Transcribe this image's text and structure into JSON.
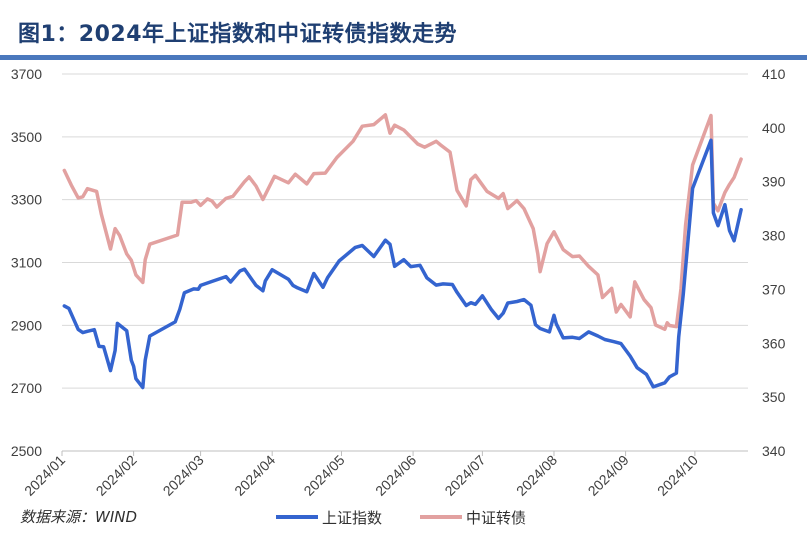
{
  "title": "图1：2024年上证指数和中证转债指数走势",
  "source_note": "数据来源：WIND",
  "colors": {
    "title": "#1f3f72",
    "rule": "#4a78bd",
    "sse": "#3464cf",
    "cb": "#e2a1a0",
    "grid": "#d9d9d9"
  },
  "chart_data": {
    "type": "line",
    "xlabel": "",
    "ylabel": "",
    "grid": true,
    "legend_position": "bottom",
    "x_tick_labels": [
      "2024/01",
      "2024/02",
      "2024/03",
      "2024/04",
      "2024/05",
      "2024/06",
      "2024/07",
      "2024/08",
      "2024/09",
      "2024/10"
    ],
    "y_left": {
      "min": 2500,
      "max": 3700,
      "ticks": [
        "2500",
        "2700",
        "2900",
        "3100",
        "3300",
        "3500",
        "3700"
      ]
    },
    "y_right": {
      "min": 340,
      "max": 410,
      "ticks": [
        "340",
        "350",
        "360",
        "370",
        "380",
        "390",
        "400",
        "410"
      ]
    },
    "series": [
      {
        "name": "上证指数",
        "axis": "left",
        "color": "#3464cf",
        "points": [
          [
            "2024-01-02",
            2962
          ],
          [
            "2024-01-04",
            2954
          ],
          [
            "2024-01-08",
            2887
          ],
          [
            "2024-01-10",
            2877
          ],
          [
            "2024-01-12",
            2881
          ],
          [
            "2024-01-15",
            2886
          ],
          [
            "2024-01-17",
            2833
          ],
          [
            "2024-01-19",
            2832
          ],
          [
            "2024-01-22",
            2756
          ],
          [
            "2024-01-24",
            2820
          ],
          [
            "2024-01-25",
            2906
          ],
          [
            "2024-01-29",
            2883
          ],
          [
            "2024-01-31",
            2789
          ],
          [
            "2024-02-01",
            2770
          ],
          [
            "2024-02-02",
            2730
          ],
          [
            "2024-02-05",
            2702
          ],
          [
            "2024-02-06",
            2789
          ],
          [
            "2024-02-08",
            2866
          ],
          [
            "2024-02-19",
            2911
          ],
          [
            "2024-02-21",
            2951
          ],
          [
            "2024-02-23",
            3004
          ],
          [
            "2024-02-27",
            3016
          ],
          [
            "2024-02-29",
            3015
          ],
          [
            "2024-03-01",
            3027
          ],
          [
            "2024-03-06",
            3040
          ],
          [
            "2024-03-12",
            3055
          ],
          [
            "2024-03-14",
            3038
          ],
          [
            "2024-03-18",
            3073
          ],
          [
            "2024-03-20",
            3079
          ],
          [
            "2024-03-25",
            3027
          ],
          [
            "2024-03-28",
            3010
          ],
          [
            "2024-03-29",
            3041
          ],
          [
            "2024-04-01",
            3077
          ],
          [
            "2024-04-08",
            3047
          ],
          [
            "2024-04-10",
            3027
          ],
          [
            "2024-04-12",
            3019
          ],
          [
            "2024-04-16",
            3007
          ],
          [
            "2024-04-19",
            3065
          ],
          [
            "2024-04-23",
            3021
          ],
          [
            "2024-04-25",
            3052
          ],
          [
            "2024-04-30",
            3105
          ],
          [
            "2024-05-07",
            3148
          ],
          [
            "2024-05-10",
            3154
          ],
          [
            "2024-05-15",
            3119
          ],
          [
            "2024-05-20",
            3171
          ],
          [
            "2024-05-22",
            3158
          ],
          [
            "2024-05-24",
            3088
          ],
          [
            "2024-05-28",
            3109
          ],
          [
            "2024-05-31",
            3087
          ],
          [
            "2024-06-04",
            3091
          ],
          [
            "2024-06-07",
            3051
          ],
          [
            "2024-06-11",
            3028
          ],
          [
            "2024-06-14",
            3032
          ],
          [
            "2024-06-18",
            3030
          ],
          [
            "2024-06-20",
            3005
          ],
          [
            "2024-06-24",
            2963
          ],
          [
            "2024-06-26",
            2972
          ],
          [
            "2024-06-28",
            2967
          ],
          [
            "2024-07-01",
            2994
          ],
          [
            "2024-07-05",
            2949
          ],
          [
            "2024-07-08",
            2922
          ],
          [
            "2024-07-10",
            2939
          ],
          [
            "2024-07-12",
            2971
          ],
          [
            "2024-07-16",
            2976
          ],
          [
            "2024-07-19",
            2982
          ],
          [
            "2024-07-22",
            2964
          ],
          [
            "2024-07-24",
            2902
          ],
          [
            "2024-07-26",
            2890
          ],
          [
            "2024-07-30",
            2879
          ],
          [
            "2024-08-01",
            2932
          ],
          [
            "2024-08-02",
            2905
          ],
          [
            "2024-08-05",
            2860
          ],
          [
            "2024-08-09",
            2862
          ],
          [
            "2024-08-12",
            2858
          ],
          [
            "2024-08-16",
            2879
          ],
          [
            "2024-08-20",
            2866
          ],
          [
            "2024-08-23",
            2855
          ],
          [
            "2024-08-27",
            2848
          ],
          [
            "2024-08-30",
            2842
          ],
          [
            "2024-09-03",
            2802
          ],
          [
            "2024-09-06",
            2765
          ],
          [
            "2024-09-10",
            2744
          ],
          [
            "2024-09-13",
            2704
          ],
          [
            "2024-09-18",
            2717
          ],
          [
            "2024-09-20",
            2736
          ],
          [
            "2024-09-23",
            2748
          ],
          [
            "2024-09-24",
            2863
          ],
          [
            "2024-09-26",
            3000
          ],
          [
            "2024-09-30",
            3336
          ],
          [
            "2024-10-08",
            3489
          ],
          [
            "2024-10-09",
            3258
          ],
          [
            "2024-10-11",
            3217
          ],
          [
            "2024-10-14",
            3284
          ],
          [
            "2024-10-16",
            3202
          ],
          [
            "2024-10-18",
            3169
          ],
          [
            "2024-10-21",
            3268
          ]
        ]
      },
      {
        "name": "中证转债",
        "axis": "right",
        "color": "#e2a1a0",
        "points": [
          [
            "2024-01-02",
            392.1
          ],
          [
            "2024-01-05",
            389.4
          ],
          [
            "2024-01-08",
            387.0
          ],
          [
            "2024-01-10",
            387.2
          ],
          [
            "2024-01-12",
            388.7
          ],
          [
            "2024-01-16",
            388.2
          ],
          [
            "2024-01-18",
            384.0
          ],
          [
            "2024-01-22",
            377.5
          ],
          [
            "2024-01-24",
            381.3
          ],
          [
            "2024-01-26",
            380.0
          ],
          [
            "2024-01-29",
            376.6
          ],
          [
            "2024-01-31",
            375.4
          ],
          [
            "2024-02-02",
            372.7
          ],
          [
            "2024-02-05",
            371.3
          ],
          [
            "2024-02-06",
            375.5
          ],
          [
            "2024-02-08",
            378.4
          ],
          [
            "2024-02-20",
            380.1
          ],
          [
            "2024-02-22",
            386.2
          ],
          [
            "2024-02-26",
            386.2
          ],
          [
            "2024-02-28",
            386.5
          ],
          [
            "2024-03-01",
            385.6
          ],
          [
            "2024-03-04",
            386.8
          ],
          [
            "2024-03-06",
            386.4
          ],
          [
            "2024-03-08",
            385.3
          ],
          [
            "2024-03-12",
            386.9
          ],
          [
            "2024-03-15",
            387.3
          ],
          [
            "2024-03-20",
            390.0
          ],
          [
            "2024-03-22",
            390.9
          ],
          [
            "2024-03-25",
            389.2
          ],
          [
            "2024-03-28",
            386.7
          ],
          [
            "2024-04-02",
            391.0
          ],
          [
            "2024-04-08",
            389.8
          ],
          [
            "2024-04-11",
            391.4
          ],
          [
            "2024-04-16",
            389.6
          ],
          [
            "2024-04-19",
            391.5
          ],
          [
            "2024-04-24",
            391.6
          ],
          [
            "2024-04-29",
            394.5
          ],
          [
            "2024-05-06",
            397.5
          ],
          [
            "2024-05-10",
            400.3
          ],
          [
            "2024-05-15",
            400.6
          ],
          [
            "2024-05-20",
            402.4
          ],
          [
            "2024-05-22",
            399.0
          ],
          [
            "2024-05-24",
            400.5
          ],
          [
            "2024-05-28",
            399.6
          ],
          [
            "2024-06-03",
            397.0
          ],
          [
            "2024-06-06",
            396.4
          ],
          [
            "2024-06-11",
            397.5
          ],
          [
            "2024-06-13",
            396.8
          ],
          [
            "2024-06-17",
            395.5
          ],
          [
            "2024-06-20",
            388.4
          ],
          [
            "2024-06-24",
            385.5
          ],
          [
            "2024-06-26",
            390.4
          ],
          [
            "2024-06-28",
            391.2
          ],
          [
            "2024-07-03",
            388.2
          ],
          [
            "2024-07-08",
            386.9
          ],
          [
            "2024-07-10",
            387.8
          ],
          [
            "2024-07-12",
            385.0
          ],
          [
            "2024-07-16",
            386.5
          ],
          [
            "2024-07-19",
            385.0
          ],
          [
            "2024-07-23",
            381.3
          ],
          [
            "2024-07-25",
            376.6
          ],
          [
            "2024-07-26",
            373.3
          ],
          [
            "2024-07-29",
            378.5
          ],
          [
            "2024-08-01",
            380.7
          ],
          [
            "2024-08-05",
            377.4
          ],
          [
            "2024-08-09",
            376.1
          ],
          [
            "2024-08-12",
            376.2
          ],
          [
            "2024-08-16",
            374.3
          ],
          [
            "2024-08-20",
            372.7
          ],
          [
            "2024-08-22",
            368.5
          ],
          [
            "2024-08-26",
            370.2
          ],
          [
            "2024-08-28",
            365.8
          ],
          [
            "2024-08-30",
            367.2
          ],
          [
            "2024-09-03",
            364.9
          ],
          [
            "2024-09-05",
            371.4
          ],
          [
            "2024-09-09",
            368.1
          ],
          [
            "2024-09-12",
            366.6
          ],
          [
            "2024-09-14",
            363.4
          ],
          [
            "2024-09-18",
            362.6
          ],
          [
            "2024-09-19",
            363.8
          ],
          [
            "2024-09-20",
            363.3
          ],
          [
            "2024-09-23",
            363.1
          ],
          [
            "2024-09-25",
            370.2
          ],
          [
            "2024-09-27",
            382.0
          ],
          [
            "2024-09-30",
            393.1
          ],
          [
            "2024-10-08",
            402.3
          ],
          [
            "2024-10-09",
            386.0
          ],
          [
            "2024-10-11",
            384.6
          ],
          [
            "2024-10-14",
            388.0
          ],
          [
            "2024-10-16",
            389.5
          ],
          [
            "2024-10-18",
            390.8
          ],
          [
            "2024-10-21",
            394.2
          ]
        ]
      }
    ]
  }
}
